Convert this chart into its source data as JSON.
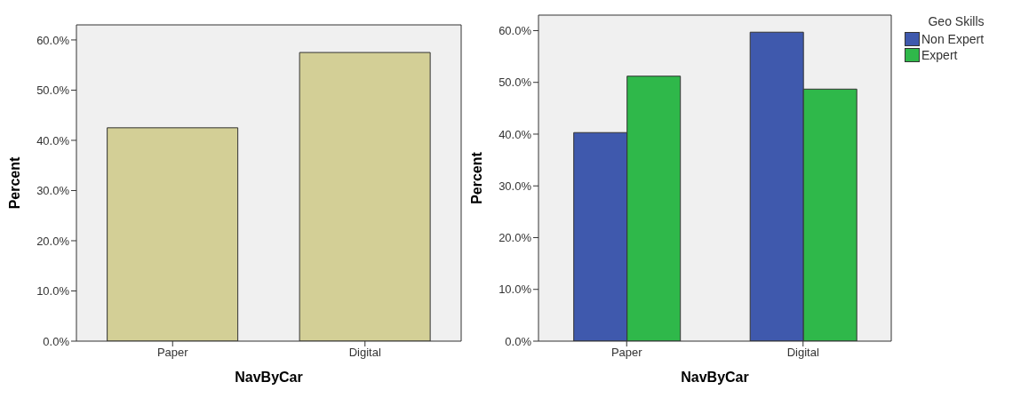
{
  "chart_data": [
    {
      "type": "bar",
      "categories": [
        "Paper",
        "Digital"
      ],
      "xlabel": "NavByCar",
      "ylabel": "Percent",
      "series": [
        {
          "color": "#d3cf96",
          "values": [
            42.5,
            57.5
          ]
        }
      ],
      "ylim": [
        0,
        63
      ],
      "yticks": [
        {
          "value": 0,
          "label": "0.0%"
        },
        {
          "value": 10,
          "label": "10.0%"
        },
        {
          "value": 20,
          "label": "20.0%"
        },
        {
          "value": 30,
          "label": "30.0%"
        },
        {
          "value": 40,
          "label": "40.0%"
        },
        {
          "value": 50,
          "label": "50.0%"
        },
        {
          "value": 60,
          "label": "60.0%"
        }
      ],
      "grid": false,
      "legend": false
    },
    {
      "type": "bar",
      "categories": [
        "Paper",
        "Digital"
      ],
      "xlabel": "NavByCar",
      "ylabel": "Percent",
      "legend_title": "Geo Skills",
      "series": [
        {
          "name": "Non Expert",
          "color": "#3f59ad",
          "values": [
            40.3,
            59.7
          ]
        },
        {
          "name": "Expert",
          "color": "#2fb84a",
          "values": [
            51.2,
            48.7
          ]
        }
      ],
      "ylim": [
        0,
        63
      ],
      "yticks": [
        {
          "value": 0,
          "label": "0.0%"
        },
        {
          "value": 10,
          "label": "10.0%"
        },
        {
          "value": 20,
          "label": "20.0%"
        },
        {
          "value": 30,
          "label": "30.0%"
        },
        {
          "value": 40,
          "label": "40.0%"
        },
        {
          "value": 50,
          "label": "50.0%"
        },
        {
          "value": 60,
          "label": "60.0%"
        }
      ],
      "grid": false,
      "legend": "top right"
    }
  ]
}
